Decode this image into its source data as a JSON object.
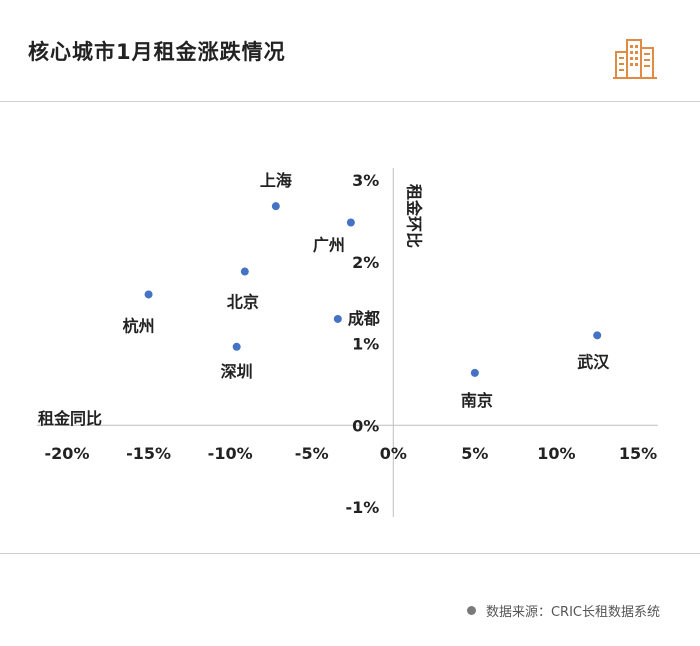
{
  "title": "核心城市1月租金涨跌情况",
  "source": "数据来源：CRIC长租数据系统",
  "logo_icon": "city-buildings-icon",
  "colors": {
    "point": "#4472C4",
    "logo": "#E08A44",
    "axis": "#BFBFBF",
    "text": "#222222"
  },
  "chart_data": {
    "type": "scatter",
    "xlabel": "租金同比",
    "ylabel": "租金环比",
    "xlim": [
      -0.2,
      0.15
    ],
    "ylim": [
      -0.01,
      0.03
    ],
    "x_ticks": [
      {
        "v": -0.2,
        "label": "-20%"
      },
      {
        "v": -0.15,
        "label": "-15%"
      },
      {
        "v": -0.1,
        "label": "-10%"
      },
      {
        "v": -0.05,
        "label": "-5%"
      },
      {
        "v": 0.0,
        "label": "0%"
      },
      {
        "v": 0.05,
        "label": "5%"
      },
      {
        "v": 0.1,
        "label": "10%"
      },
      {
        "v": 0.15,
        "label": "15%"
      }
    ],
    "y_ticks": [
      {
        "v": -0.01,
        "label": "-1%"
      },
      {
        "v": 0.0,
        "label": "0%"
      },
      {
        "v": 0.01,
        "label": "1%"
      },
      {
        "v": 0.02,
        "label": "2%"
      },
      {
        "v": 0.03,
        "label": "3%"
      }
    ],
    "points": [
      {
        "name": "上海",
        "x": -0.072,
        "y": 0.0268
      },
      {
        "name": "广州",
        "x": -0.026,
        "y": 0.0248
      },
      {
        "name": "北京",
        "x": -0.091,
        "y": 0.0188
      },
      {
        "name": "杭州",
        "x": -0.15,
        "y": 0.016
      },
      {
        "name": "成都",
        "x": -0.034,
        "y": 0.013
      },
      {
        "name": "深圳",
        "x": -0.096,
        "y": 0.0096
      },
      {
        "name": "南京",
        "x": 0.05,
        "y": 0.0064
      },
      {
        "name": "武汉",
        "x": 0.125,
        "y": 0.011
      }
    ]
  }
}
